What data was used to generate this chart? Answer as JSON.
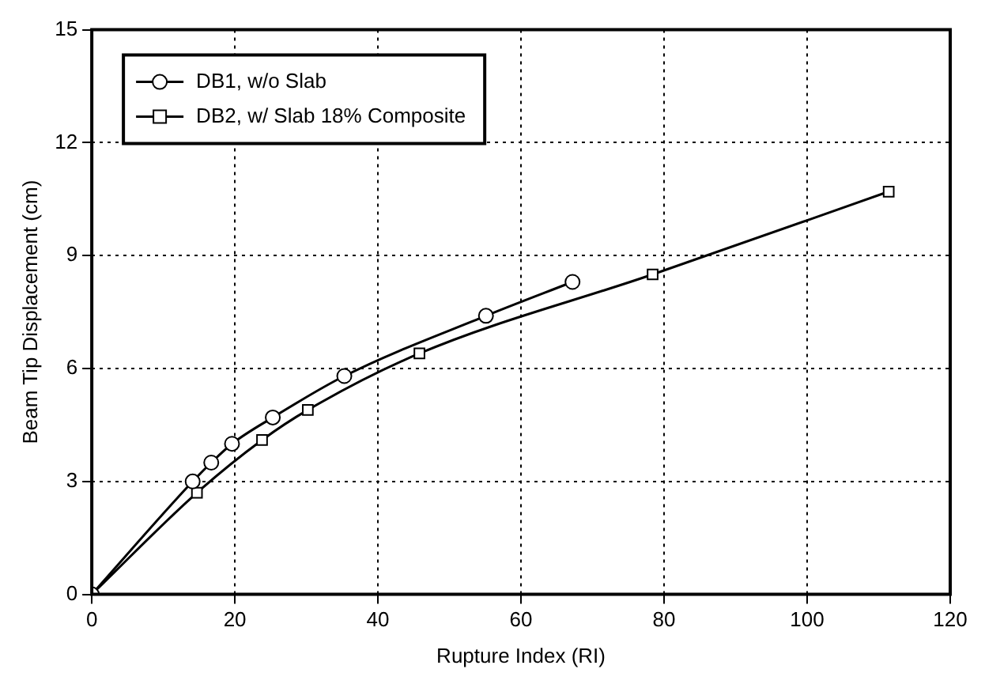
{
  "chart_data": {
    "type": "line",
    "xlabel": "Rupture Index (RI)",
    "ylabel": "Beam Tip Displacement (cm)",
    "xlim": [
      0,
      120
    ],
    "xticks": [
      0,
      20,
      40,
      60,
      80,
      100,
      120
    ],
    "ylim": [
      0,
      15
    ],
    "yticks": [
      0,
      3,
      6,
      9,
      12,
      15
    ],
    "grid": true,
    "legend": "top left",
    "line_style": "solid",
    "series": [
      {
        "name": "DB1, w/o Slab",
        "color": "#000000",
        "marker": "circle",
        "x": [
          0,
          14.1,
          16.7,
          19.6,
          25.3,
          35.3,
          55.1,
          67.2
        ],
        "values": [
          0,
          3.0,
          3.5,
          4.0,
          4.7,
          5.8,
          7.4,
          8.3
        ]
      },
      {
        "name": "DB2, w/ Slab 18% Composite",
        "color": "#000000",
        "marker": "square",
        "x": [
          0,
          14.7,
          23.8,
          30.2,
          45.8,
          78.4,
          111.4
        ],
        "values": [
          0,
          2.7,
          4.1,
          4.9,
          6.4,
          8.5,
          10.7
        ]
      }
    ]
  }
}
